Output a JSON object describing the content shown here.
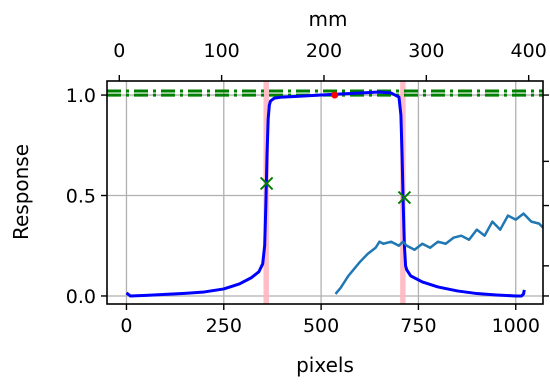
{
  "chart_data": {
    "type": "line",
    "xlabel": "pixels",
    "ylabel": "Response",
    "top_xlabel": "mm",
    "xlim": [
      -50,
      1070
    ],
    "ylim": [
      -0.04,
      1.07
    ],
    "top_xlim": [
      -12,
      414
    ],
    "x_ticks": [
      0,
      250,
      500,
      750,
      1000
    ],
    "x_tick_labels": [
      "0",
      "250",
      "500",
      "750",
      "1000"
    ],
    "y_ticks": [
      0.0,
      0.5,
      1.0
    ],
    "y_tick_labels": [
      "0.0",
      "0.5",
      "1.0"
    ],
    "top_ticks": [
      0,
      100,
      200,
      300,
      400
    ],
    "top_tick_labels": [
      "0",
      "100",
      "200",
      "300",
      "400"
    ],
    "grid": true,
    "legend": "none",
    "colors": {
      "response_line": "#0000ff",
      "noisy_line": "#1f77b4",
      "reference_lines": "#008000",
      "edge_bands": "#ffb6c1",
      "half_max_markers": "#008000",
      "peak_marker": "#ff0000"
    },
    "series": [
      {
        "x": [
          0,
          10,
          50,
          100,
          150,
          200,
          250,
          290,
          320,
          340,
          350,
          355,
          358,
          361,
          364,
          367,
          370,
          380,
          400,
          450,
          500,
          550,
          600,
          650,
          680,
          700,
          705,
          708,
          711,
          714,
          717,
          720,
          730,
          760,
          800,
          850,
          900,
          950,
          1000,
          1015,
          1020,
          1022
        ],
        "y": [
          0.015,
          0.0,
          0.003,
          0.008,
          0.013,
          0.02,
          0.035,
          0.06,
          0.09,
          0.12,
          0.16,
          0.25,
          0.45,
          0.7,
          0.88,
          0.95,
          0.97,
          0.985,
          0.99,
          0.995,
          1.0,
          1.005,
          1.01,
          1.015,
          1.01,
          0.99,
          0.9,
          0.7,
          0.45,
          0.25,
          0.15,
          0.13,
          0.1,
          0.07,
          0.045,
          0.025,
          0.012,
          0.005,
          0.0,
          0.0,
          0.01,
          0.03
        ]
      },
      {
        "x": [
          537,
          550,
          570,
          600,
          620,
          640,
          650,
          660,
          680,
          700,
          710,
          720,
          740,
          760,
          780,
          800,
          820,
          840,
          860,
          880,
          900,
          920,
          940,
          960,
          980,
          1000,
          1020,
          1040,
          1060,
          1070
        ],
        "y": [
          0.01,
          0.04,
          0.1,
          0.17,
          0.21,
          0.24,
          0.27,
          0.26,
          0.27,
          0.25,
          0.27,
          0.25,
          0.23,
          0.26,
          0.24,
          0.27,
          0.26,
          0.29,
          0.3,
          0.28,
          0.33,
          0.3,
          0.37,
          0.33,
          0.4,
          0.38,
          0.41,
          0.37,
          0.36,
          0.34
        ]
      }
    ],
    "reference_y": [
      1.0,
      1.02
    ],
    "edge_bands_x": [
      [
        352,
        366
      ],
      [
        703,
        717
      ]
    ],
    "half_max_points": [
      {
        "x": 360,
        "y": 0.56
      },
      {
        "x": 714,
        "y": 0.49
      }
    ],
    "peak_marker": {
      "x": 535,
      "y": 1.0
    }
  }
}
